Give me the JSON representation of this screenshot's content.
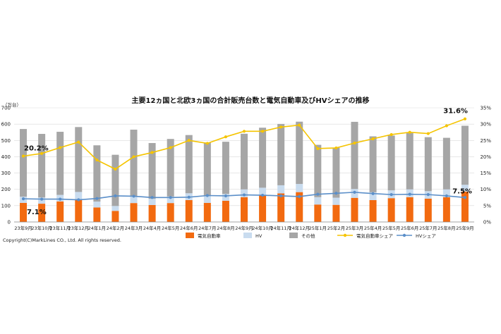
{
  "chart_data": {
    "type": "bar",
    "subtype": "stacked bar + line (dual axis)",
    "title": "主要12ヵ国と北欧3ヵ国の合計販売台数と電気自動車及びHVシェアの推移",
    "ylabel": "（万台）",
    "ylim": [
      0,
      700
    ],
    "yticks": [
      0,
      100,
      200,
      300,
      400,
      500,
      600,
      700
    ],
    "y2lim": [
      0,
      35
    ],
    "y2ticks": [
      "0%",
      "5%",
      "10%",
      "15%",
      "20%",
      "25%",
      "30%",
      "35%"
    ],
    "categories": [
      "23年9月",
      "23年10月",
      "23年11月",
      "23年12月",
      "24年1月",
      "24年2月",
      "24年3月",
      "24年4月",
      "24年5月",
      "24年6月",
      "24年7月",
      "24年8月",
      "24年9月",
      "24年10月",
      "24年11月",
      "24年12月",
      "25年1月",
      "25年2月",
      "25年3月",
      "25年4月",
      "25年5月",
      "25年6月",
      "25年7月",
      "25年8月",
      "25年9月"
    ],
    "series": [
      {
        "name": "電気自動車",
        "axis": "left",
        "kind": "bar",
        "color": "#F26A10",
        "values": [
          117,
          112,
          126,
          140,
          89,
          68,
          116,
          104,
          116,
          134,
          117,
          130,
          152,
          162,
          175,
          183,
          107,
          105,
          148,
          134,
          146,
          152,
          143,
          152,
          186
        ]
      },
      {
        "name": "HV",
        "axis": "left",
        "kind": "bar",
        "color": "#C9DCEF",
        "values": [
          38,
          38,
          40,
          44,
          36,
          30,
          42,
          38,
          40,
          42,
          42,
          42,
          48,
          48,
          50,
          50,
          45,
          44,
          54,
          48,
          48,
          48,
          46,
          48,
          42
        ]
      },
      {
        "name": "その他",
        "axis": "left",
        "kind": "bar",
        "color": "#A6A6A6",
        "values": [
          415,
          390,
          387,
          398,
          345,
          314,
          408,
          342,
          353,
          357,
          328,
          320,
          341,
          368,
          376,
          382,
          321,
          306,
          412,
          343,
          336,
          346,
          331,
          316,
          362
        ]
      },
      {
        "name": "電気自動車シェア",
        "axis": "right",
        "kind": "line",
        "color": "#F5C400",
        "values": [
          20.2,
          21.0,
          22.8,
          24.5,
          19.0,
          16.2,
          20.0,
          21.3,
          22.8,
          25.0,
          24.1,
          26.1,
          27.8,
          27.8,
          29.1,
          29.7,
          22.5,
          22.7,
          24.2,
          25.5,
          26.8,
          27.5,
          27.1,
          29.5,
          31.6
        ]
      },
      {
        "name": "HVシェア",
        "axis": "right",
        "kind": "line",
        "color": "#5B8FC9",
        "values": [
          7.1,
          7.0,
          7.0,
          6.8,
          7.2,
          8.0,
          7.9,
          7.5,
          7.5,
          7.6,
          8.1,
          8.0,
          8.3,
          8.2,
          8.0,
          7.8,
          8.5,
          8.8,
          9.1,
          8.7,
          8.4,
          8.5,
          8.4,
          8.0,
          7.5
        ]
      }
    ],
    "annotations": [
      "20.2%",
      "7.1%",
      "31.6%",
      "7.5%"
    ],
    "legend": [
      "電気自動車",
      "HV",
      "その他",
      "電気自動車シェア",
      "HVシェア"
    ],
    "legend_position": "bottom",
    "grid": true
  },
  "copyright": "Copyright(C)MarkLines CO., Ltd. All rights reserved."
}
